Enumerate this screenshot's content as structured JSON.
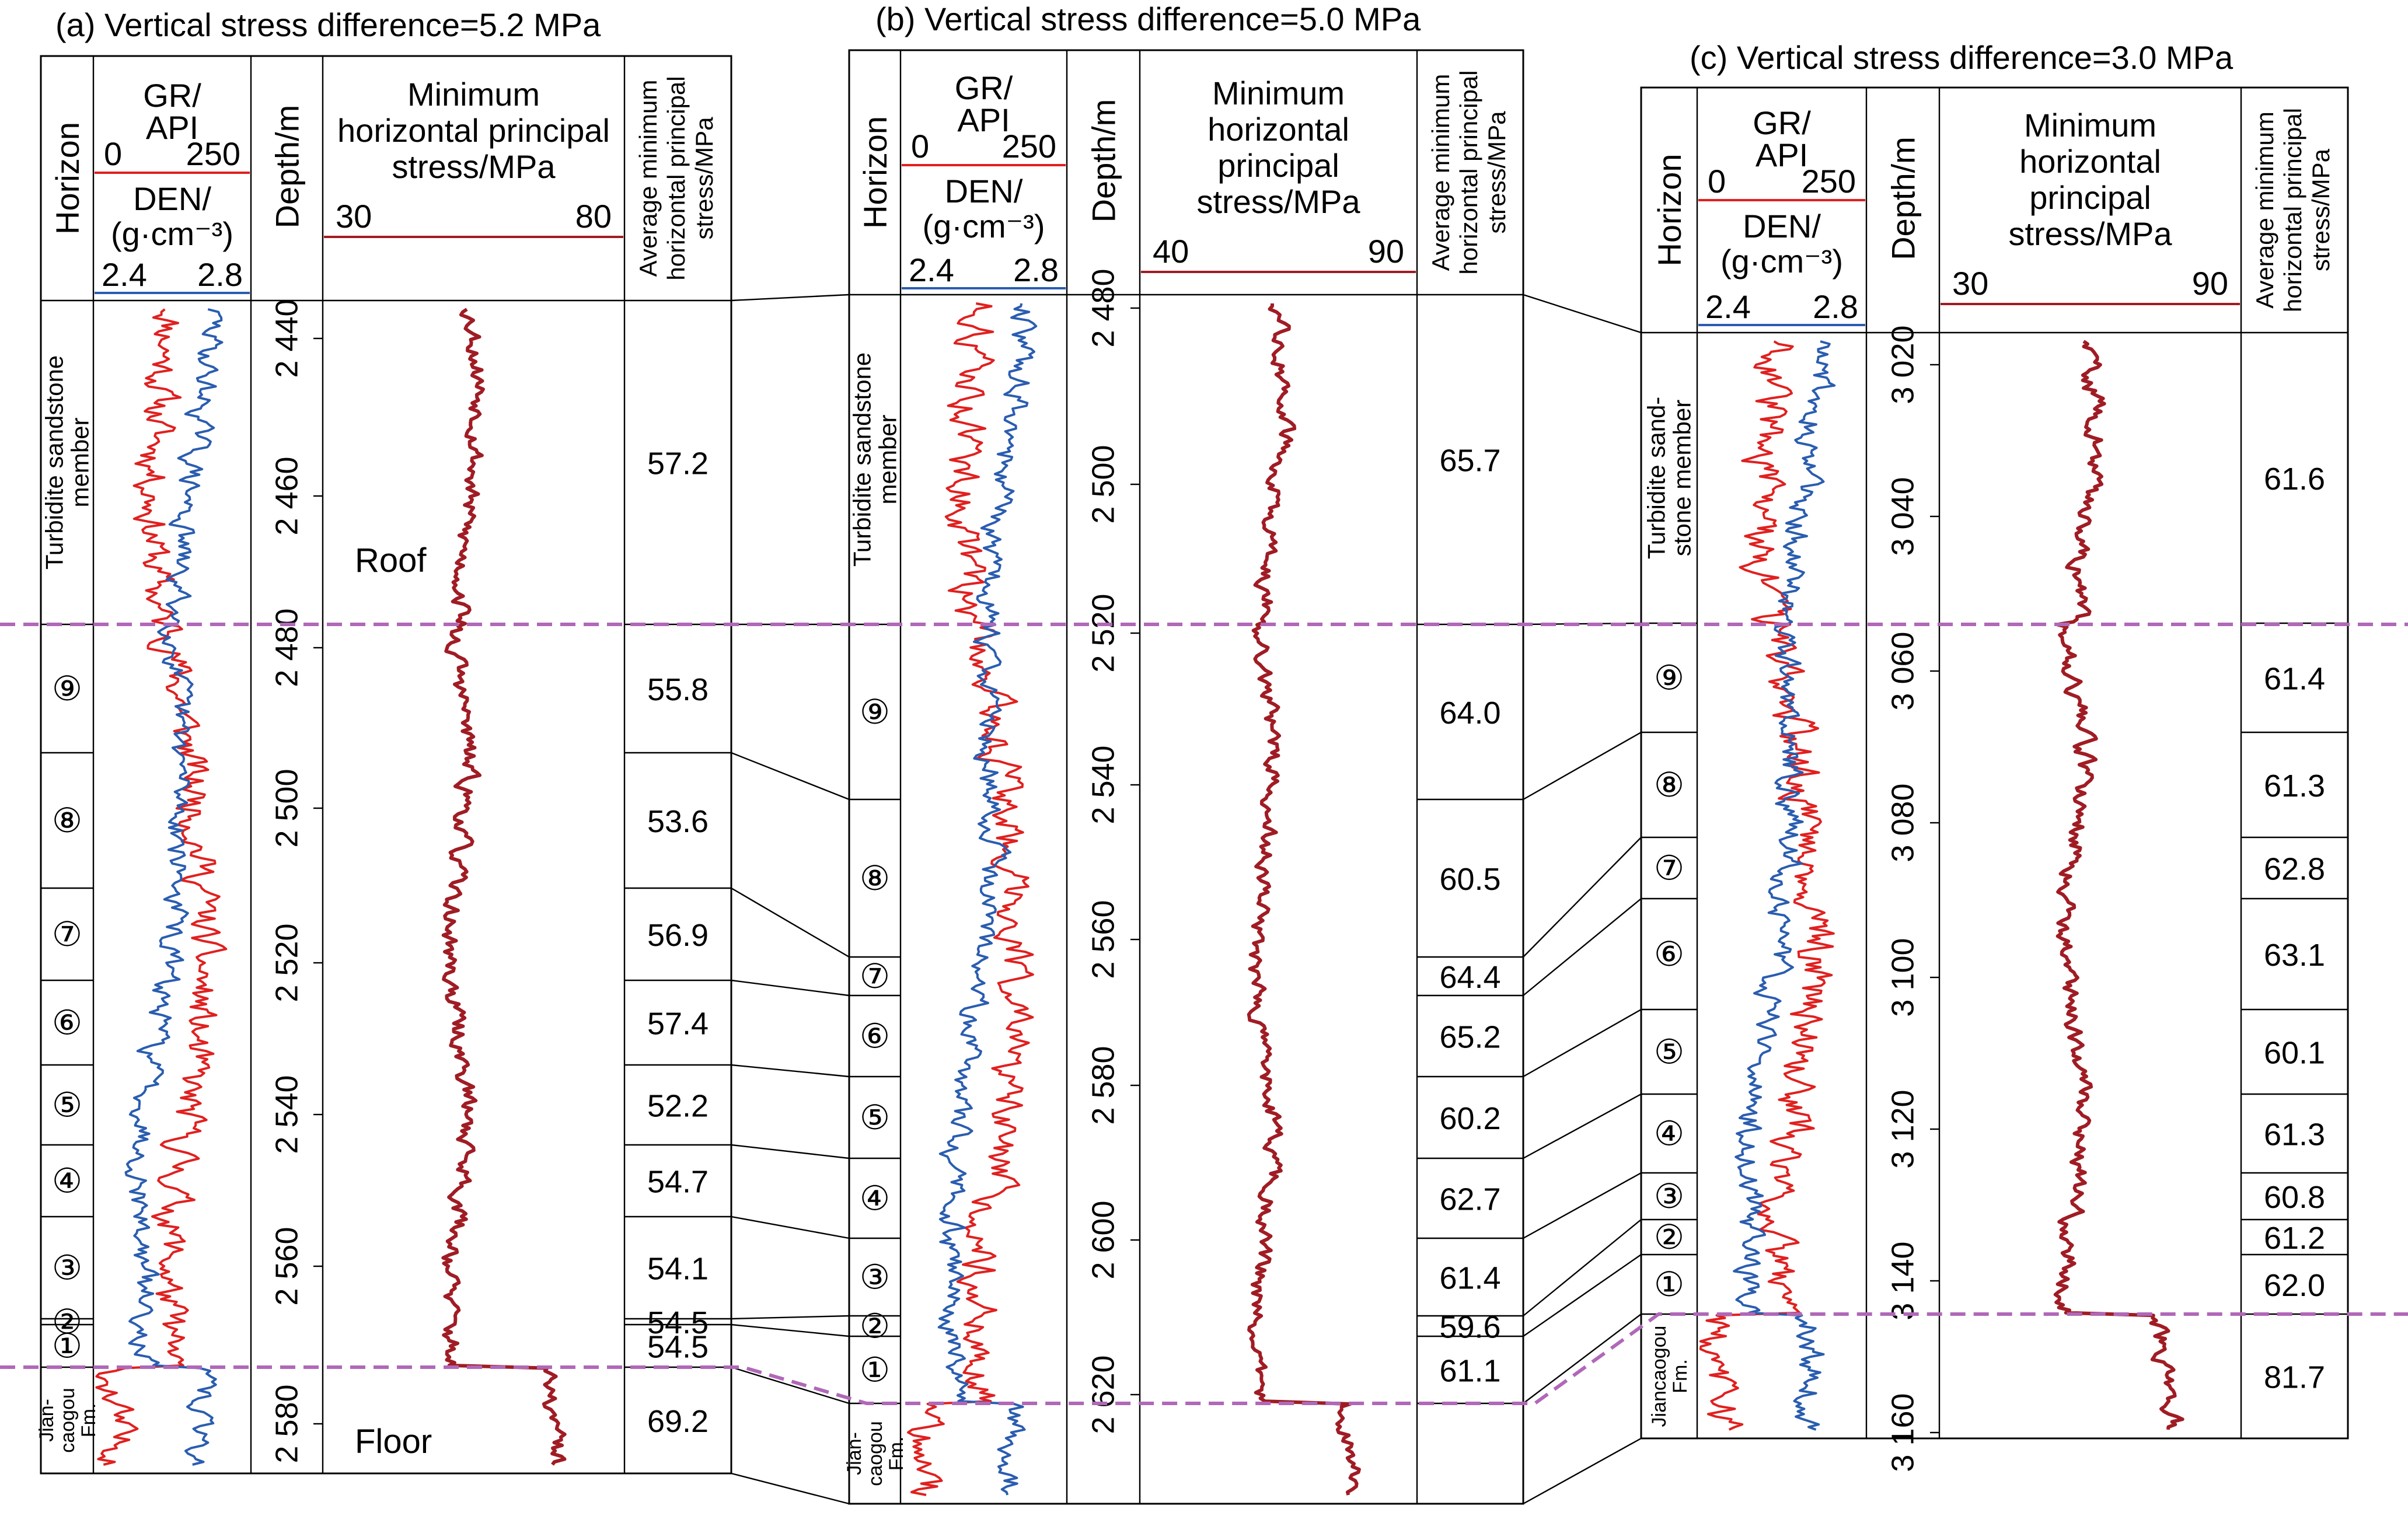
{
  "panels": [
    {
      "title": "(a) Vertical stress difference=5.2 MPa",
      "headers": {
        "horizon": "Horizon",
        "gr": "GR/",
        "gr_unit": "API",
        "gr_min": "0",
        "gr_max": "250",
        "den": "DEN/",
        "den_unit": "(g·cm⁻³)",
        "den_min": "2.4",
        "den_max": "2.8",
        "depth": "Depth/m",
        "stress_lines": [
          "Minimum",
          "horizontal principal",
          "stress/MPa"
        ],
        "stress_min": "30",
        "stress_max": "80",
        "avg_lines": [
          "Average minimum",
          "horizontal principal",
          "stress/MPa"
        ]
      },
      "depth_ticks": [
        "2 440",
        "2 460",
        "2 480",
        "2 500",
        "2 520",
        "2 540",
        "2 560",
        "2 580"
      ],
      "zones": [
        {
          "label": "Turbidite sandstone member",
          "lines": [
            "Turbidite sandstone",
            "member"
          ],
          "avg": "57.2"
        },
        {
          "label": "⑨",
          "avg": "55.8"
        },
        {
          "label": "⑧",
          "avg": "53.6"
        },
        {
          "label": "⑦",
          "avg": "56.9"
        },
        {
          "label": "⑥",
          "avg": "57.4"
        },
        {
          "label": "⑤",
          "avg": "52.2"
        },
        {
          "label": "④",
          "avg": "54.7"
        },
        {
          "label": "③",
          "avg": "54.1"
        },
        {
          "label": "②",
          "avg": "54.5"
        },
        {
          "label": "①",
          "avg": "54.5"
        },
        {
          "label": "Jiancaogou Fm.",
          "lines": [
            "Jian-",
            "caogou",
            "Fm."
          ],
          "avg": "69.2"
        }
      ],
      "annotations": {
        "roof": "Roof",
        "floor": "Floor"
      }
    },
    {
      "title": "(b) Vertical stress difference=5.0 MPa",
      "headers": {
        "horizon": "Horizon",
        "gr": "GR/",
        "gr_unit": "API",
        "gr_min": "0",
        "gr_max": "250",
        "den": "DEN/",
        "den_unit": "(g·cm⁻³)",
        "den_min": "2.4",
        "den_max": "2.8",
        "depth": "Depth/m",
        "stress_lines": [
          "Minimum",
          "horizontal",
          "principal",
          "stress/MPa"
        ],
        "stress_min": "40",
        "stress_max": "90",
        "avg_lines": [
          "Average minimum",
          "horizontal principal",
          "stress/MPa"
        ]
      },
      "depth_ticks": [
        "2 480",
        "2 500",
        "2 520",
        "2 540",
        "2 560",
        "2 580",
        "2 600",
        "2 620"
      ],
      "zones": [
        {
          "label": "Turbidite sandstone member",
          "lines": [
            "Turbidite sandstone",
            "member"
          ],
          "avg": "65.7"
        },
        {
          "label": "⑨",
          "avg": "64.0"
        },
        {
          "label": "⑧",
          "avg": "60.5"
        },
        {
          "label": "⑦",
          "avg": "64.4"
        },
        {
          "label": "⑥",
          "avg": "65.2"
        },
        {
          "label": "⑤",
          "avg": "60.2"
        },
        {
          "label": "④",
          "avg": "62.7"
        },
        {
          "label": "③",
          "avg": "61.4"
        },
        {
          "label": "②",
          "avg": "59.6"
        },
        {
          "label": "①",
          "avg": "61.1"
        },
        {
          "label": "Jiancaogou Fm.",
          "lines": [
            "Jian-",
            "caogou",
            "Fm."
          ],
          "avg": ""
        }
      ]
    },
    {
      "title": "(c) Vertical stress difference=3.0 MPa",
      "headers": {
        "horizon": "Horizon",
        "gr": "GR/",
        "gr_unit": "API",
        "gr_min": "0",
        "gr_max": "250",
        "den": "DEN/",
        "den_unit": "(g·cm⁻³)",
        "den_min": "2.4",
        "den_max": "2.8",
        "depth": "Depth/m",
        "stress_lines": [
          "Minimum",
          "horizontal",
          "principal",
          "stress/MPa"
        ],
        "stress_min": "30",
        "stress_max": "90",
        "avg_lines": [
          "Average minimum",
          "horizontal principal",
          "stress/MPa"
        ]
      },
      "depth_ticks": [
        "3 020",
        "3 040",
        "3 060",
        "3 080",
        "3 100",
        "3 120",
        "3 140",
        "3 160"
      ],
      "zones": [
        {
          "label": "Turbidite sandstone member",
          "lines": [
            "Turbidite sand-",
            "stone member"
          ],
          "avg": "61.6"
        },
        {
          "label": "⑨",
          "avg": "61.4"
        },
        {
          "label": "⑧",
          "avg": "61.3"
        },
        {
          "label": "⑦",
          "avg": "62.8"
        },
        {
          "label": "⑥",
          "avg": "63.1"
        },
        {
          "label": "⑤",
          "avg": "60.1"
        },
        {
          "label": "④",
          "avg": "61.3"
        },
        {
          "label": "③",
          "avg": "60.8"
        },
        {
          "label": "②",
          "avg": "61.2"
        },
        {
          "label": "①",
          "avg": "62.0"
        },
        {
          "label": "Jiancaogou Fm.",
          "lines": [
            "Jiancaogou",
            "Fm."
          ],
          "avg": "81.7"
        }
      ]
    }
  ],
  "colors": {
    "gr": "#e0201f",
    "den": "#2a5db0",
    "stress": "#a01c24",
    "boundary": "#b068b8"
  },
  "chart_data": {
    "type": "line",
    "tracks": [
      {
        "title": "(a) Vertical stress difference=5.2 MPa",
        "depth_range": [
          2431,
          2589
        ],
        "stress_range": [
          30,
          80
        ],
        "zone_tops": [
          2431,
          2472,
          2490,
          2508,
          2526,
          2537,
          2548,
          2558,
          2567,
          2569,
          2575,
          2589
        ],
        "avg_stress": [
          57.2,
          55.8,
          53.6,
          56.9,
          57.4,
          52.2,
          54.7,
          54.1,
          54.5,
          54.5,
          69.2
        ],
        "roof_depth": 2472,
        "floor_depth": 2575
      },
      {
        "title": "(b) Vertical stress difference=5.0 MPa",
        "depth_range": [
          2473,
          2640
        ],
        "stress_range": [
          40,
          90
        ],
        "zone_tops": [
          2473,
          2520,
          2542,
          2562,
          2567,
          2576,
          2586,
          2596,
          2606,
          2612,
          2620,
          2640
        ],
        "avg_stress": [
          65.7,
          64.0,
          60.5,
          64.4,
          65.2,
          60.2,
          62.7,
          61.4,
          59.6,
          61.1
        ],
        "roof_depth": 2520,
        "floor_depth": 2620
      },
      {
        "title": "(c) Vertical stress difference=3.0 MPa",
        "depth_range": [
          3015,
          3166
        ],
        "stress_range": [
          30,
          90
        ],
        "zone_tops": [
          3015,
          3053,
          3068,
          3082,
          3090,
          3104,
          3115,
          3126,
          3132,
          3137,
          3143,
          3166
        ],
        "avg_stress": [
          61.6,
          61.4,
          61.3,
          62.8,
          63.1,
          60.1,
          61.3,
          60.8,
          61.2,
          62.0,
          81.7
        ],
        "roof_depth": 3053,
        "floor_depth": 3143
      }
    ],
    "series": [
      {
        "name": "GR",
        "unit": "API",
        "range": [
          0,
          250
        ]
      },
      {
        "name": "DEN",
        "unit": "g·cm⁻³",
        "range": [
          2.4,
          2.8
        ]
      },
      {
        "name": "Minimum horizontal principal stress",
        "unit": "MPa"
      }
    ]
  }
}
